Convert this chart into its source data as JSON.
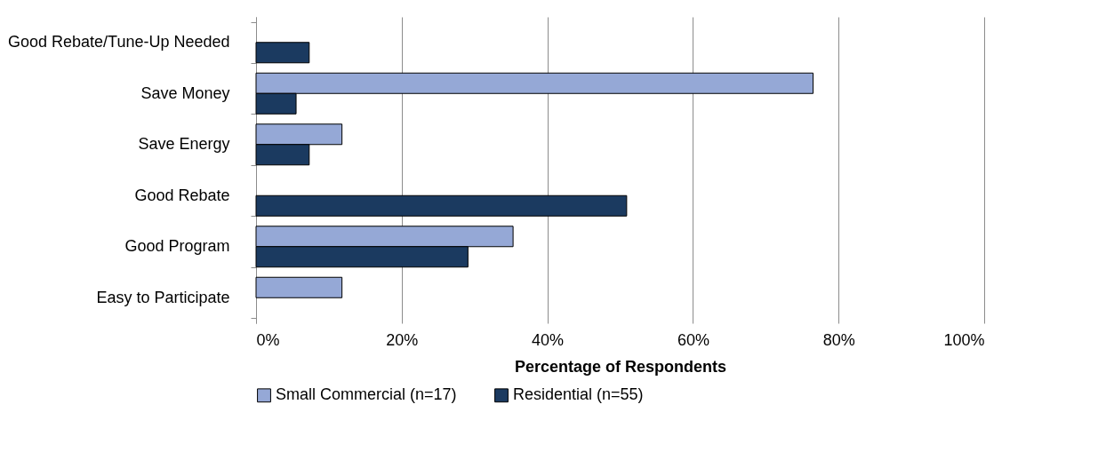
{
  "chart_data": {
    "type": "bar",
    "orientation": "horizontal",
    "xlabel": "Percentage of Respondents",
    "categories": [
      "Good Rebate/Tune-Up Needed",
      "Save Money",
      "Save Energy",
      "Good Rebate",
      "Good Program",
      "Easy to Participate"
    ],
    "series": [
      {
        "name": "Small Commercial (n=17)",
        "color": "#95a8d6",
        "values": [
          null,
          76.5,
          11.8,
          null,
          35.3,
          11.8
        ]
      },
      {
        "name": "Residential (n=55)",
        "color": "#1b3a60",
        "values": [
          7.3,
          5.5,
          7.3,
          50.9,
          29.1,
          null
        ]
      }
    ],
    "xlim": [
      0,
      100
    ],
    "xticks": [
      {
        "value": 0,
        "label": "0%"
      },
      {
        "value": 20,
        "label": "20%"
      },
      {
        "value": 40,
        "label": "40%"
      },
      {
        "value": 60,
        "label": "60%"
      },
      {
        "value": 80,
        "label": "80%"
      },
      {
        "value": 100,
        "label": "100%"
      }
    ],
    "grid": "x",
    "legend": "bottom"
  }
}
